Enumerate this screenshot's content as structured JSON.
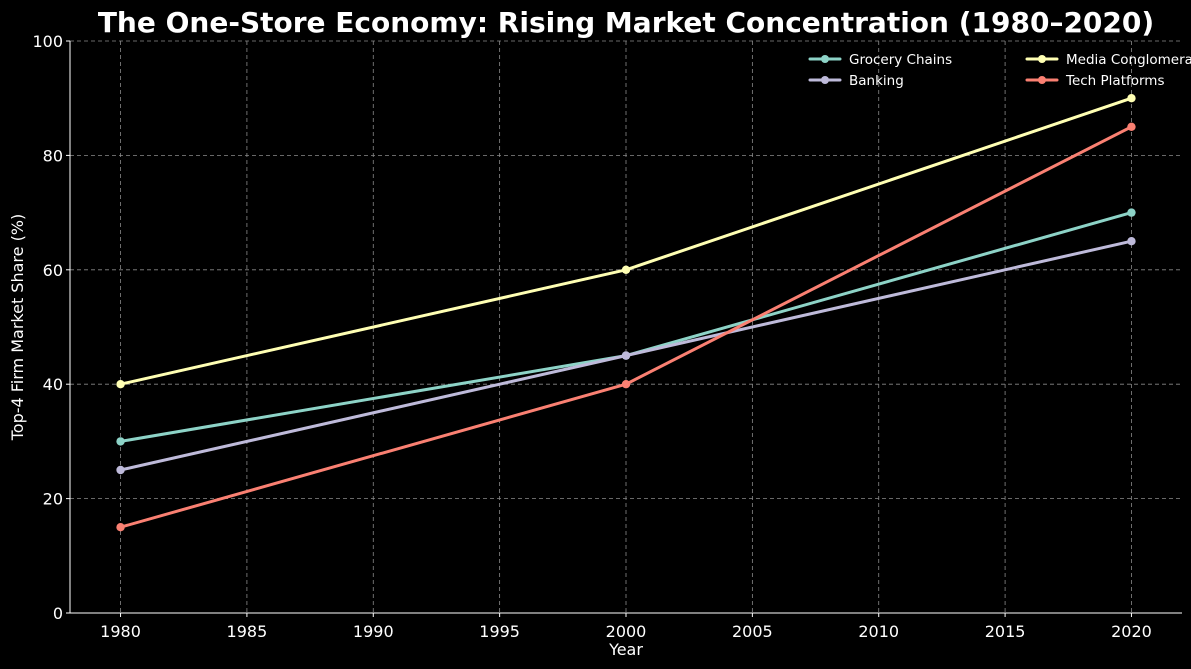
{
  "chart_data": {
    "type": "line",
    "title": "The One-Store Economy: Rising Market Concentration (1980–2020)",
    "xlabel": "Year",
    "ylabel": "Top-4 Firm Market Share (%)",
    "xlim": [
      1978,
      2022
    ],
    "ylim": [
      0,
      100
    ],
    "x_ticks": [
      1980,
      1985,
      1990,
      1995,
      2000,
      2005,
      2010,
      2015,
      2020
    ],
    "y_ticks": [
      0,
      20,
      40,
      60,
      80,
      100
    ],
    "grid": true,
    "legend_position": "top-right",
    "legend_columns": 2,
    "series": [
      {
        "name": "Grocery Chains",
        "color": "#8dd3c7",
        "x": [
          1980,
          2000,
          2020
        ],
        "values": [
          30,
          45,
          70
        ]
      },
      {
        "name": "Banking",
        "color": "#bebada",
        "x": [
          1980,
          2000,
          2020
        ],
        "values": [
          25,
          45,
          65
        ]
      },
      {
        "name": "Media Conglomerates",
        "color": "#ffffb3",
        "x": [
          1980,
          2000,
          2020
        ],
        "values": [
          40,
          60,
          90
        ]
      },
      {
        "name": "Tech Platforms",
        "color": "#fa8072",
        "x": [
          1980,
          2000,
          2020
        ],
        "values": [
          15,
          40,
          85
        ]
      }
    ]
  }
}
